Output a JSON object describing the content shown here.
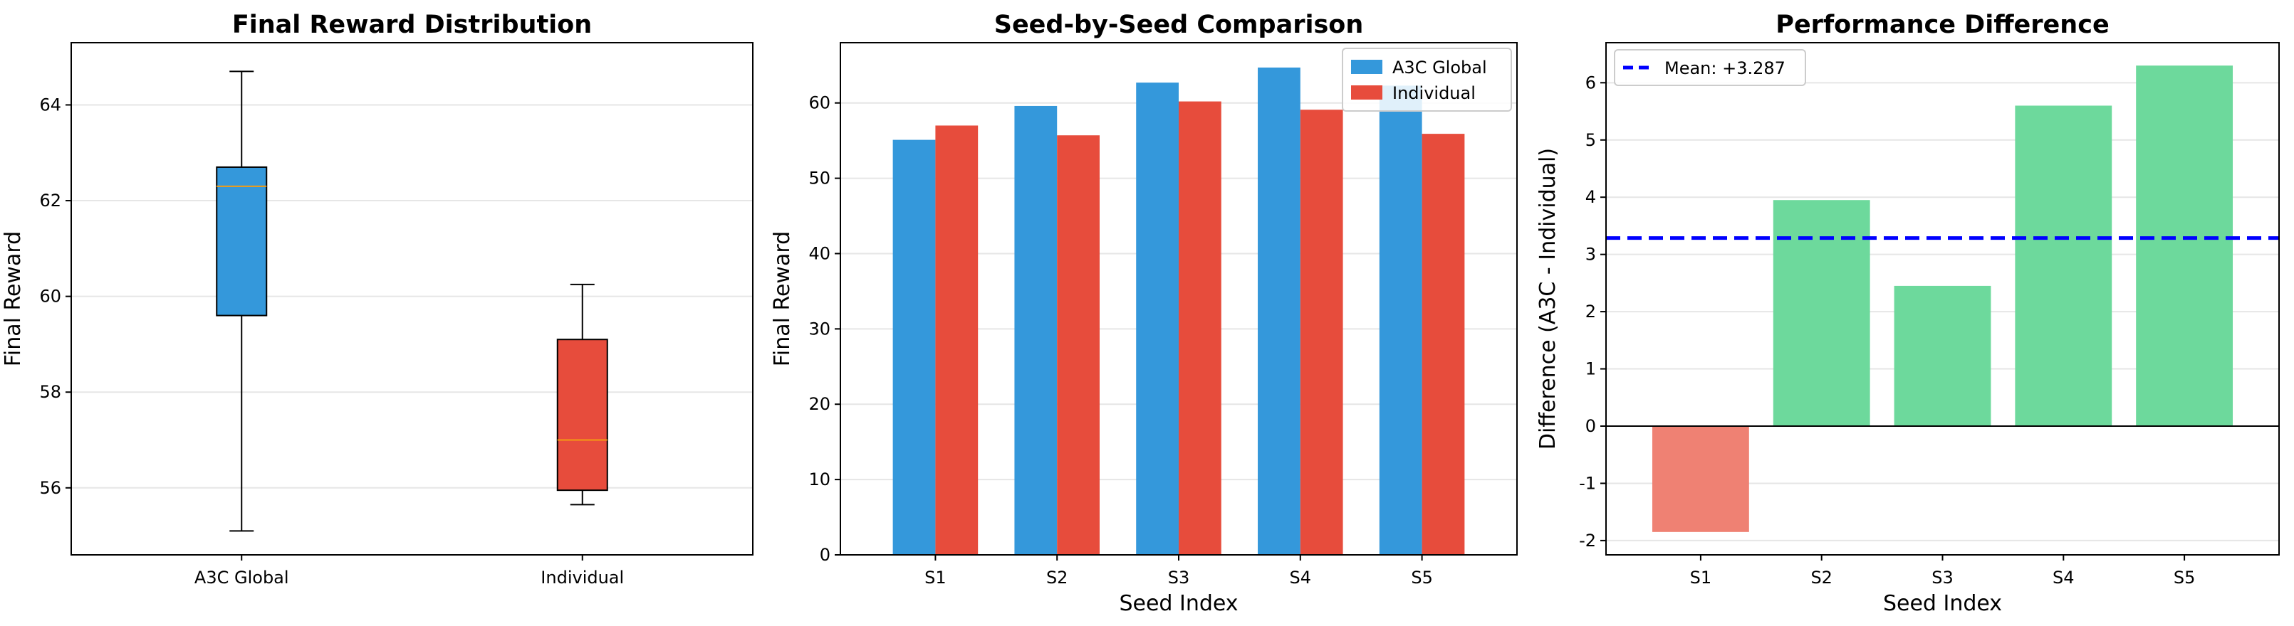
{
  "chart_data": [
    {
      "type": "box",
      "title": "Final Reward Distribution",
      "xlabel": "",
      "ylabel": "Final Reward",
      "ylim": [
        54.6,
        65.3
      ],
      "yticks": [
        56,
        58,
        60,
        62,
        64
      ],
      "grid": true,
      "categories": [
        "A3C Global",
        "Individual"
      ],
      "boxes": [
        {
          "name": "A3C Global",
          "whisker_low": 55.1,
          "q1": 59.6,
          "median": 62.3,
          "q3": 62.7,
          "whisker_high": 64.7,
          "color": "#3498db"
        },
        {
          "name": "Individual",
          "whisker_low": 55.65,
          "q1": 55.95,
          "median": 57.0,
          "q3": 59.1,
          "whisker_high": 60.25,
          "color": "#e74c3c"
        }
      ]
    },
    {
      "type": "bar",
      "title": "Seed-by-Seed Comparison",
      "xlabel": "Seed Index",
      "ylabel": "Final Reward",
      "ylim": [
        0,
        68
      ],
      "yticks": [
        0,
        10,
        20,
        30,
        40,
        50,
        60
      ],
      "grid": true,
      "legend_position": "top-right",
      "categories": [
        "S1",
        "S2",
        "S3",
        "S4",
        "S5"
      ],
      "series": [
        {
          "name": "A3C Global",
          "color": "#3498db",
          "values": [
            55.1,
            59.6,
            62.7,
            64.7,
            62.3
          ]
        },
        {
          "name": "Individual",
          "color": "#e74c3c",
          "values": [
            57.0,
            55.7,
            60.2,
            59.1,
            55.9
          ]
        }
      ]
    },
    {
      "type": "bar",
      "title": "Performance Difference",
      "xlabel": "Seed Index",
      "ylabel": "Difference (A3C - Individual)",
      "ylim": [
        -2.25,
        6.7
      ],
      "yticks": [
        -2,
        -1,
        0,
        1,
        2,
        3,
        4,
        5,
        6
      ],
      "grid": true,
      "legend_position": "top-left",
      "categories": [
        "S1",
        "S2",
        "S3",
        "S4",
        "S5"
      ],
      "values": [
        -1.85,
        3.95,
        2.45,
        5.6,
        6.3
      ],
      "positive_color": "#6dd99c",
      "negative_color": "#ef8173",
      "mean": 3.287,
      "mean_label": "Mean: +3.287",
      "mean_color": "#0000ff"
    }
  ]
}
